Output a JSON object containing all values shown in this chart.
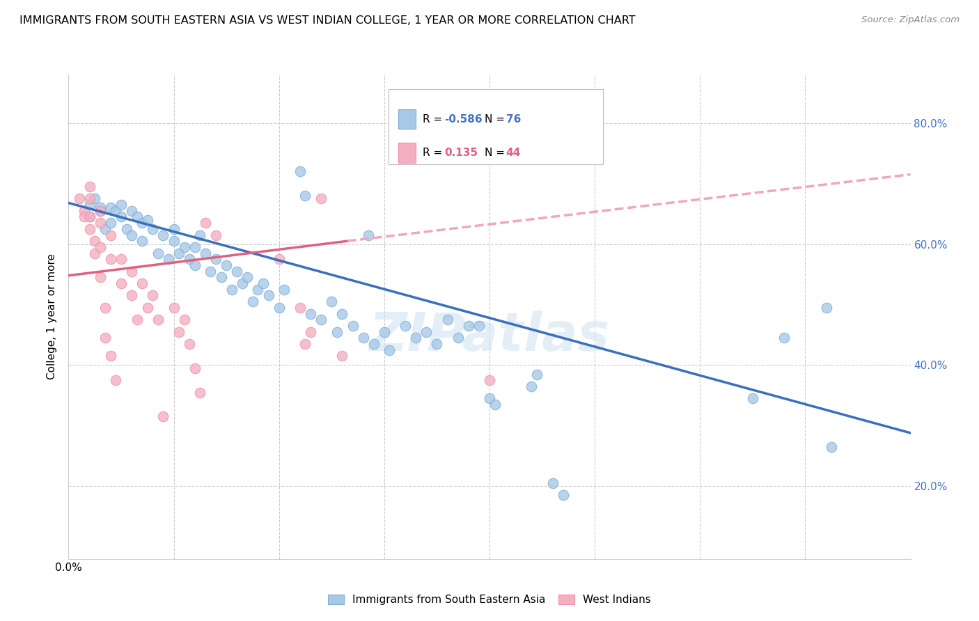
{
  "title": "IMMIGRANTS FROM SOUTH EASTERN ASIA VS WEST INDIAN COLLEGE, 1 YEAR OR MORE CORRELATION CHART",
  "source": "Source: ZipAtlas.com",
  "ylabel": "College, 1 year or more",
  "legend_label1": "Immigrants from South Eastern Asia",
  "legend_label2": "West Indians",
  "xlim": [
    0.0,
    0.8
  ],
  "ylim": [
    0.08,
    0.88
  ],
  "ytick_labels": [
    "20.0%",
    "40.0%",
    "60.0%",
    "80.0%"
  ],
  "ytick_values": [
    0.2,
    0.4,
    0.6,
    0.8
  ],
  "xtick_values": [
    0.0,
    0.1,
    0.2,
    0.3,
    0.4,
    0.5,
    0.6,
    0.7,
    0.8
  ],
  "grid_color": "#cccccc",
  "blue_color": "#a8c8e8",
  "pink_color": "#f4b0c0",
  "blue_edge_color": "#7bafd4",
  "pink_edge_color": "#f090a8",
  "blue_line_color": "#3a6fbf",
  "pink_line_color": "#e06080",
  "pink_dashed_color": "#f0a8b8",
  "watermark": "ZIPatlas",
  "blue_scatter": [
    [
      0.02,
      0.665
    ],
    [
      0.02,
      0.645
    ],
    [
      0.025,
      0.675
    ],
    [
      0.03,
      0.655
    ],
    [
      0.03,
      0.66
    ],
    [
      0.035,
      0.625
    ],
    [
      0.04,
      0.66
    ],
    [
      0.04,
      0.635
    ],
    [
      0.045,
      0.655
    ],
    [
      0.05,
      0.665
    ],
    [
      0.05,
      0.645
    ],
    [
      0.055,
      0.625
    ],
    [
      0.06,
      0.655
    ],
    [
      0.06,
      0.615
    ],
    [
      0.065,
      0.645
    ],
    [
      0.07,
      0.635
    ],
    [
      0.07,
      0.605
    ],
    [
      0.075,
      0.64
    ],
    [
      0.08,
      0.625
    ],
    [
      0.085,
      0.585
    ],
    [
      0.09,
      0.615
    ],
    [
      0.095,
      0.575
    ],
    [
      0.1,
      0.605
    ],
    [
      0.1,
      0.625
    ],
    [
      0.105,
      0.585
    ],
    [
      0.11,
      0.595
    ],
    [
      0.115,
      0.575
    ],
    [
      0.12,
      0.565
    ],
    [
      0.12,
      0.595
    ],
    [
      0.125,
      0.615
    ],
    [
      0.13,
      0.585
    ],
    [
      0.135,
      0.555
    ],
    [
      0.14,
      0.575
    ],
    [
      0.145,
      0.545
    ],
    [
      0.15,
      0.565
    ],
    [
      0.155,
      0.525
    ],
    [
      0.16,
      0.555
    ],
    [
      0.165,
      0.535
    ],
    [
      0.17,
      0.545
    ],
    [
      0.175,
      0.505
    ],
    [
      0.18,
      0.525
    ],
    [
      0.185,
      0.535
    ],
    [
      0.19,
      0.515
    ],
    [
      0.2,
      0.495
    ],
    [
      0.205,
      0.525
    ],
    [
      0.22,
      0.72
    ],
    [
      0.225,
      0.68
    ],
    [
      0.23,
      0.485
    ],
    [
      0.24,
      0.475
    ],
    [
      0.25,
      0.505
    ],
    [
      0.255,
      0.455
    ],
    [
      0.26,
      0.485
    ],
    [
      0.27,
      0.465
    ],
    [
      0.28,
      0.445
    ],
    [
      0.285,
      0.615
    ],
    [
      0.29,
      0.435
    ],
    [
      0.3,
      0.455
    ],
    [
      0.305,
      0.425
    ],
    [
      0.32,
      0.465
    ],
    [
      0.33,
      0.445
    ],
    [
      0.34,
      0.455
    ],
    [
      0.35,
      0.435
    ],
    [
      0.36,
      0.475
    ],
    [
      0.37,
      0.445
    ],
    [
      0.38,
      0.465
    ],
    [
      0.39,
      0.465
    ],
    [
      0.4,
      0.345
    ],
    [
      0.405,
      0.335
    ],
    [
      0.44,
      0.365
    ],
    [
      0.445,
      0.385
    ],
    [
      0.46,
      0.205
    ],
    [
      0.47,
      0.185
    ],
    [
      0.65,
      0.345
    ],
    [
      0.68,
      0.445
    ],
    [
      0.72,
      0.495
    ],
    [
      0.725,
      0.265
    ]
  ],
  "pink_scatter": [
    [
      0.01,
      0.675
    ],
    [
      0.015,
      0.655
    ],
    [
      0.015,
      0.645
    ],
    [
      0.02,
      0.695
    ],
    [
      0.02,
      0.675
    ],
    [
      0.02,
      0.645
    ],
    [
      0.02,
      0.625
    ],
    [
      0.025,
      0.605
    ],
    [
      0.025,
      0.585
    ],
    [
      0.03,
      0.655
    ],
    [
      0.03,
      0.635
    ],
    [
      0.03,
      0.595
    ],
    [
      0.03,
      0.545
    ],
    [
      0.035,
      0.495
    ],
    [
      0.035,
      0.445
    ],
    [
      0.04,
      0.615
    ],
    [
      0.04,
      0.575
    ],
    [
      0.04,
      0.415
    ],
    [
      0.045,
      0.375
    ],
    [
      0.05,
      0.575
    ],
    [
      0.05,
      0.535
    ],
    [
      0.06,
      0.555
    ],
    [
      0.06,
      0.515
    ],
    [
      0.065,
      0.475
    ],
    [
      0.07,
      0.535
    ],
    [
      0.075,
      0.495
    ],
    [
      0.08,
      0.515
    ],
    [
      0.085,
      0.475
    ],
    [
      0.09,
      0.315
    ],
    [
      0.1,
      0.495
    ],
    [
      0.105,
      0.455
    ],
    [
      0.11,
      0.475
    ],
    [
      0.115,
      0.435
    ],
    [
      0.12,
      0.395
    ],
    [
      0.125,
      0.355
    ],
    [
      0.13,
      0.635
    ],
    [
      0.14,
      0.615
    ],
    [
      0.2,
      0.575
    ],
    [
      0.22,
      0.495
    ],
    [
      0.225,
      0.435
    ],
    [
      0.23,
      0.455
    ],
    [
      0.24,
      0.675
    ],
    [
      0.26,
      0.415
    ],
    [
      0.4,
      0.375
    ]
  ],
  "blue_trendline": [
    [
      0.0,
      0.668
    ],
    [
      0.8,
      0.288
    ]
  ],
  "pink_trendline_solid": [
    [
      0.0,
      0.548
    ],
    [
      0.265,
      0.605
    ]
  ],
  "pink_trendline_dashed": [
    [
      0.265,
      0.605
    ],
    [
      0.8,
      0.715
    ]
  ]
}
